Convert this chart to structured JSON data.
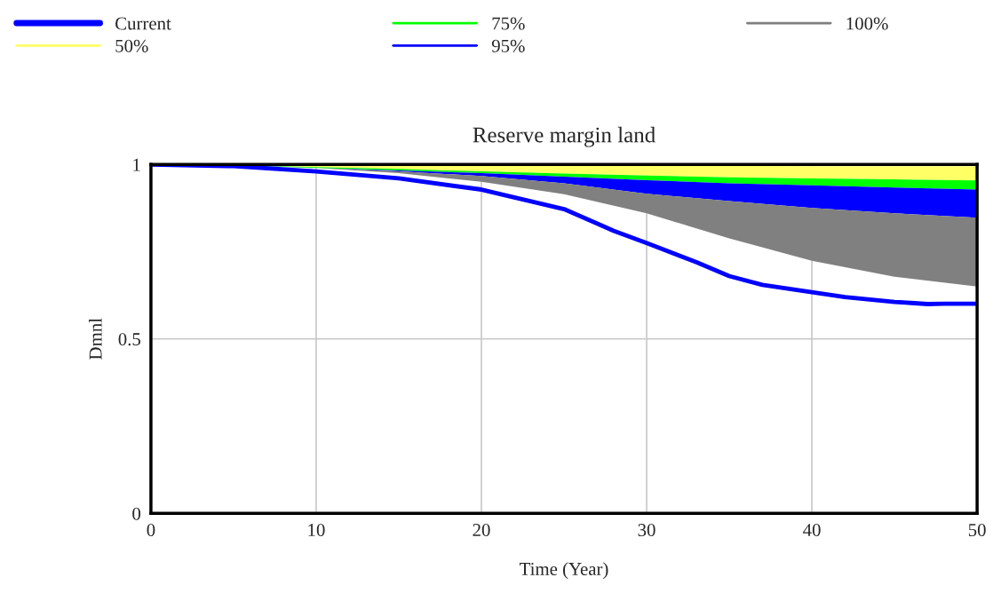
{
  "chart_data": {
    "type": "line",
    "title": "Reserve margin land",
    "xlabel": "Time (Year)",
    "ylabel": "Dmnl",
    "x": [
      0,
      5,
      10,
      15,
      20,
      25,
      30,
      35,
      40,
      45,
      50
    ],
    "series": [
      {
        "name": "Current",
        "color": "#0000ff",
        "x": [
          0,
          5,
          10,
          15,
          20,
          25,
          28,
          30,
          33,
          35,
          37,
          40,
          42,
          45,
          46,
          47,
          48,
          50
        ],
        "values": [
          1.0,
          0.995,
          0.98,
          0.96,
          0.928,
          0.872,
          0.81,
          0.775,
          0.72,
          0.68,
          0.655,
          0.634,
          0.62,
          0.606,
          0.603,
          0.6,
          0.601,
          0.601
        ]
      },
      {
        "name": "50%",
        "type": "area",
        "color": "#ffff66",
        "values": [
          null,
          null,
          null,
          null,
          null,
          null,
          null,
          null,
          null,
          null,
          null
        ],
        "upper": [
          1.0,
          1.0,
          0.998,
          0.997,
          0.997,
          0.996,
          0.996,
          0.996,
          0.995,
          0.995,
          0.995
        ],
        "lower": [
          1.0,
          0.998,
          0.992,
          0.987,
          0.98,
          0.974,
          0.968,
          0.963,
          0.96,
          0.957,
          0.954
        ]
      },
      {
        "name": "75%",
        "type": "area",
        "color": "#00ff00",
        "values": [
          null,
          null,
          null,
          null,
          null,
          null,
          null,
          null,
          null,
          null,
          null
        ],
        "upper": [
          1.0,
          0.998,
          0.992,
          0.987,
          0.98,
          0.974,
          0.968,
          0.963,
          0.96,
          0.957,
          0.954
        ],
        "lower": [
          1.0,
          0.998,
          0.99,
          0.983,
          0.975,
          0.965,
          0.955,
          0.946,
          0.94,
          0.934,
          0.928
        ]
      },
      {
        "name": "95%",
        "type": "area",
        "color": "#0000ff",
        "values": [
          null,
          null,
          null,
          null,
          null,
          null,
          null,
          null,
          null,
          null,
          null
        ],
        "upper": [
          1.0,
          0.998,
          0.99,
          0.983,
          0.975,
          0.965,
          0.955,
          0.946,
          0.94,
          0.934,
          0.928
        ],
        "lower": [
          1.0,
          0.997,
          0.99,
          0.98,
          0.967,
          0.946,
          0.916,
          0.895,
          0.875,
          0.86,
          0.847
        ]
      },
      {
        "name": "100%",
        "type": "area",
        "color": "#808080",
        "values": [
          null,
          null,
          null,
          null,
          null,
          null,
          null,
          null,
          null,
          null,
          null
        ],
        "upper": [
          1.0,
          0.997,
          0.99,
          0.98,
          0.967,
          0.946,
          0.916,
          0.895,
          0.875,
          0.86,
          0.847
        ],
        "lower": [
          1.0,
          0.997,
          0.99,
          0.975,
          0.95,
          0.915,
          0.86,
          0.788,
          0.724,
          0.678,
          0.65
        ]
      }
    ],
    "xlim": [
      0,
      50
    ],
    "xticks": [
      0,
      10,
      20,
      30,
      40,
      50
    ],
    "ylim": [
      0,
      1
    ],
    "yticks": [
      0,
      0.5,
      1
    ],
    "grid": true,
    "legend": "top left"
  }
}
